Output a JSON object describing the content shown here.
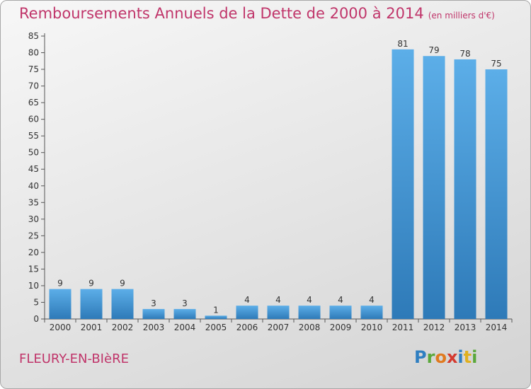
{
  "chart_data": {
    "type": "bar",
    "title": "Remboursements Annuels de la Dette de 2000 à 2014",
    "subtitle": "(en milliers d'€)",
    "categories": [
      "2000",
      "2001",
      "2002",
      "2003",
      "2004",
      "2005",
      "2006",
      "2007",
      "2008",
      "2009",
      "2010",
      "2011",
      "2012",
      "2013",
      "2014"
    ],
    "values": [
      9,
      9,
      9,
      3,
      3,
      1,
      4,
      4,
      4,
      4,
      4,
      81,
      79,
      78,
      75
    ],
    "yticks": [
      0,
      5,
      10,
      15,
      20,
      25,
      30,
      35,
      40,
      45,
      50,
      55,
      60,
      65,
      70,
      75,
      80,
      85
    ],
    "ylim": [
      0,
      85
    ],
    "xlabel": "",
    "ylabel": "",
    "grid": false,
    "bar_color_top": "#5caee8",
    "bar_color_bottom": "#2e7ab8",
    "title_color": "#c0356a"
  },
  "footer": {
    "place": "FLEURY-EN-BIèRE",
    "logo_letters": [
      "P",
      "r",
      "o",
      "x",
      "i",
      "t",
      "i"
    ],
    "logo_colors": [
      "#2f7fc1",
      "#5aa83a",
      "#e07a1f",
      "#d43a2f",
      "#2f7fc1",
      "#e0b020",
      "#5aa83a"
    ]
  }
}
